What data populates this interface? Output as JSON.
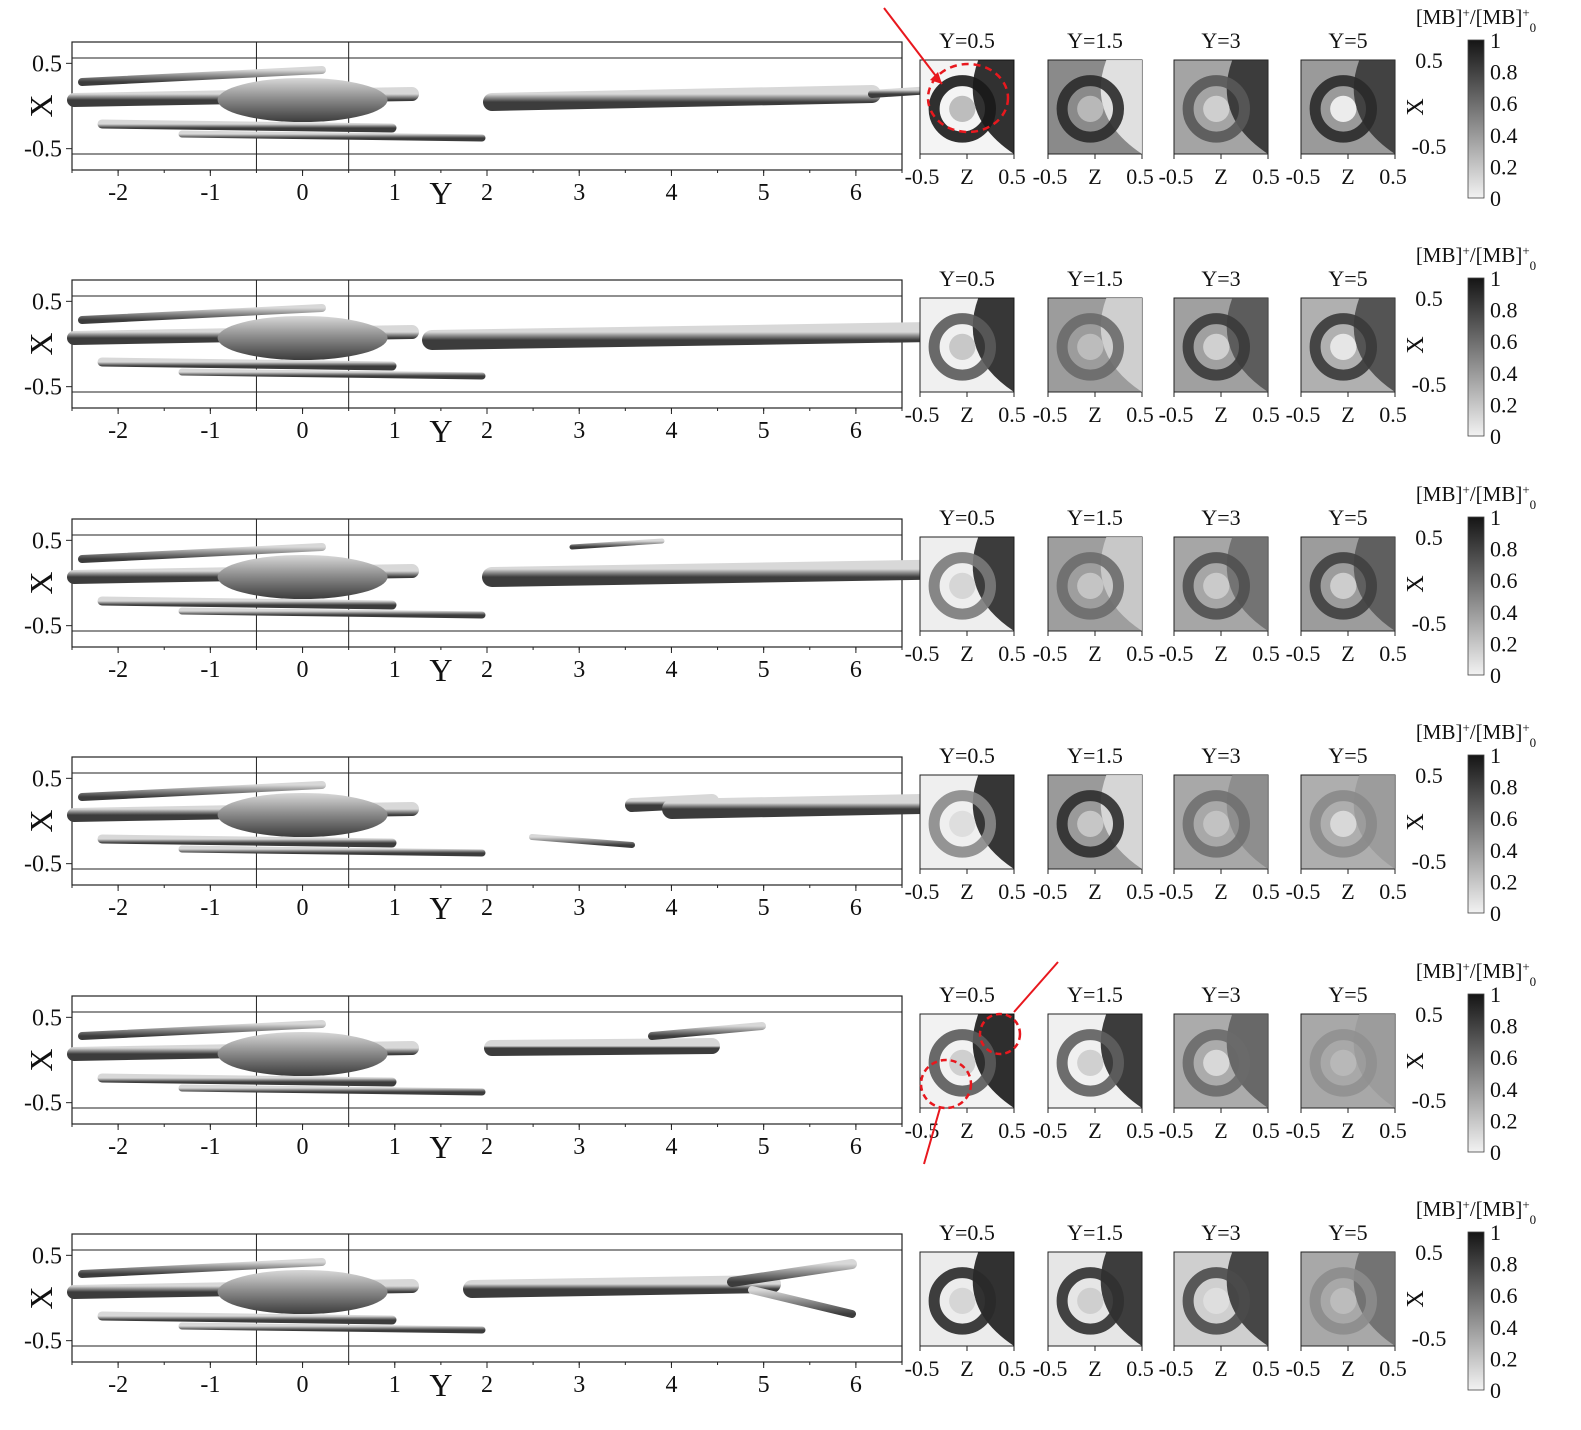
{
  "figure": {
    "rows": [
      {
        "id": "row-1"
      },
      {
        "id": "row-2"
      },
      {
        "id": "row-3"
      },
      {
        "id": "row-4"
      },
      {
        "id": "row-5"
      },
      {
        "id": "row-6"
      }
    ]
  },
  "isosurface_panel": {
    "x_axis_label": "Y",
    "y_axis_label": "X",
    "x_ticks": [
      "-2",
      "-1",
      "0",
      "1",
      "2",
      "3",
      "4",
      "5",
      "6"
    ],
    "x_tick_values": [
      -2,
      -1,
      0,
      1,
      2,
      3,
      4,
      5,
      6
    ],
    "y_ticks": [
      "0.5",
      "-0.5"
    ],
    "y_tick_values": [
      0.5,
      -0.5
    ],
    "x_range": [
      -2.5,
      6.5
    ],
    "y_range": [
      -0.75,
      0.75
    ]
  },
  "slice_panels": {
    "titles": [
      "Y=0.5",
      "Y=1.5",
      "Y=3",
      "Y=5"
    ],
    "z_axis_label": "Z",
    "z_ticks": [
      "-0.5",
      "0.5"
    ],
    "x_axis_label": "X",
    "x_ticks": [
      "0.5",
      "-0.5"
    ]
  },
  "colorbar": {
    "label": "[MB]+/[MB]+0",
    "label_parts": {
      "a": "[MB]",
      "sup1": "+",
      "b": "/[MB]",
      "sup2": "+",
      "sub": "0"
    },
    "ticks": [
      "1",
      "0.8",
      "0.6",
      "0.4",
      "0.2",
      "0"
    ],
    "tick_values": [
      1,
      0.8,
      0.6,
      0.4,
      0.2,
      0
    ],
    "colors": {
      "low": "#f2f2f2",
      "high": "#151515"
    }
  },
  "annotation_colors": {
    "arrow": "#e8181e",
    "circle": "#e8181e"
  }
}
